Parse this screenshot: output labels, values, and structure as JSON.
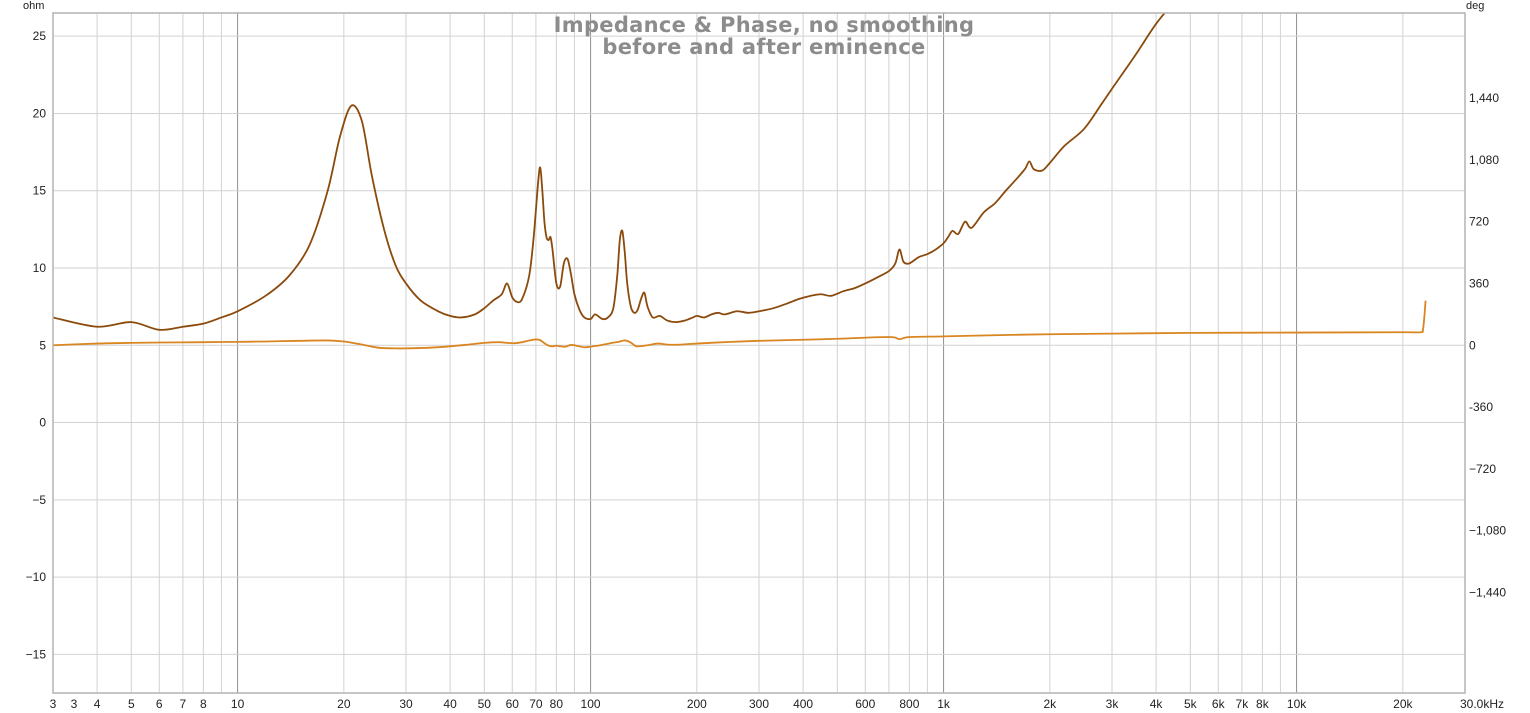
{
  "chart_data": {
    "type": "line",
    "title": "Impedance & Phase, no smoothing",
    "subtitle": "before and after eminence",
    "xlabel": "",
    "ylabel": "",
    "x_unit": "kHz",
    "x_scale": "log",
    "xlim": [
      3,
      30000
    ],
    "x_tick_values": [
      3,
      4,
      5,
      6,
      7,
      8,
      10,
      20,
      30,
      40,
      50,
      60,
      70,
      80,
      100,
      200,
      300,
      400,
      600,
      800,
      1000,
      2000,
      3000,
      4000,
      5000,
      6000,
      7000,
      8000,
      10000,
      20000,
      30000
    ],
    "x_tick_labels": [
      "3",
      "4",
      "5",
      "6",
      "7",
      "8",
      "10",
      "20",
      "30",
      "40",
      "50",
      "60",
      "70",
      "80",
      "100",
      "200",
      "300",
      "400",
      "600",
      "800",
      "1k",
      "2k",
      "3k",
      "4k",
      "5k",
      "6k",
      "7k",
      "8k",
      "10k",
      "20k",
      "30.0kHz"
    ],
    "x_extra_label": "3",
    "y_left": {
      "unit": "ohm",
      "ylim": [
        -17.5,
        26.5
      ],
      "tick_values": [
        25,
        20,
        15,
        10,
        5,
        0,
        -5,
        -10,
        -15
      ],
      "tick_labels": [
        "25",
        "20",
        "15",
        "10",
        "5",
        "0",
        "−5",
        "−10",
        "−15"
      ]
    },
    "y_right": {
      "unit": "deg",
      "ylim": [
        -2025,
        1935
      ],
      "tick_values": [
        1440,
        1080,
        720,
        360,
        0,
        -360,
        -720,
        -1080,
        -1440
      ],
      "tick_labels": [
        "1,440",
        "1,080",
        "720",
        "360",
        "0",
        "-360",
        "−720",
        "−1,080",
        "−1,440"
      ]
    },
    "grid": true,
    "legend": "none",
    "series": [
      {
        "axis": "left",
        "color": "#8b4a0c",
        "x": [
          3,
          4,
          5,
          6,
          7,
          8,
          9,
          10,
          12,
          14,
          16,
          18,
          19.5,
          21,
          22.5,
          24,
          26,
          28,
          30,
          33,
          37,
          40,
          43,
          47,
          50,
          53,
          56,
          58,
          60,
          62,
          64,
          67,
          69,
          71,
          72,
          73,
          74,
          75,
          76,
          77,
          78,
          80,
          82,
          84,
          86,
          88,
          90,
          93,
          96,
          100,
          103,
          108,
          112,
          116,
          119,
          121,
          123,
          125,
          127,
          130,
          133,
          136,
          139,
          142,
          145,
          150,
          157,
          165,
          175,
          185,
          195,
          200,
          210,
          220,
          230,
          240,
          260,
          280,
          300,
          330,
          360,
          390,
          420,
          450,
          480,
          520,
          560,
          600,
          650,
          700,
          730,
          750,
          770,
          800,
          850,
          900,
          950,
          1000,
          1030,
          1060,
          1100,
          1150,
          1200,
          1300,
          1400,
          1500,
          1600,
          1700,
          1750,
          1800,
          1900,
          2000,
          2200,
          2500,
          2800,
          3000,
          3500,
          4000,
          4600
        ],
        "values": [
          6.8,
          6.2,
          6.5,
          6.0,
          6.2,
          6.4,
          6.8,
          7.2,
          8.2,
          9.5,
          11.5,
          15.0,
          18.5,
          20.5,
          19.5,
          16.0,
          12.5,
          10.2,
          9.0,
          7.9,
          7.2,
          6.9,
          6.8,
          7.0,
          7.4,
          7.9,
          8.3,
          9.0,
          8.1,
          7.8,
          8.0,
          9.5,
          12.0,
          15.5,
          16.5,
          15.0,
          13.0,
          12.0,
          11.8,
          12.0,
          11.2,
          9.0,
          8.8,
          10.3,
          10.6,
          9.6,
          8.3,
          7.3,
          6.8,
          6.7,
          7.0,
          6.7,
          6.8,
          7.4,
          9.5,
          11.8,
          12.4,
          11.0,
          9.0,
          7.5,
          7.1,
          7.3,
          8.0,
          8.4,
          7.5,
          6.8,
          6.9,
          6.6,
          6.5,
          6.6,
          6.8,
          6.9,
          6.8,
          7.0,
          7.1,
          7.0,
          7.2,
          7.1,
          7.2,
          7.4,
          7.7,
          8.0,
          8.2,
          8.3,
          8.2,
          8.5,
          8.7,
          9.0,
          9.4,
          9.8,
          10.3,
          11.2,
          10.4,
          10.3,
          10.7,
          10.9,
          11.2,
          11.6,
          12.0,
          12.4,
          12.2,
          13.0,
          12.6,
          13.6,
          14.2,
          15.0,
          15.7,
          16.4,
          16.9,
          16.4,
          16.3,
          16.8,
          17.9,
          19.0,
          20.6,
          21.6,
          23.8,
          25.8,
          27.5
        ]
      },
      {
        "axis": "right",
        "color": "#d98520",
        "x": [
          3,
          4,
          5,
          6,
          7,
          8,
          10,
          12,
          15,
          18,
          20,
          22,
          25,
          28,
          30,
          35,
          40,
          45,
          50,
          55,
          58,
          61,
          64,
          67,
          70,
          72,
          74,
          76,
          78,
          80,
          82,
          85,
          88,
          92,
          96,
          100,
          105,
          110,
          115,
          120,
          125,
          130,
          135,
          145,
          155,
          165,
          180,
          200,
          250,
          300,
          400,
          500,
          700,
          750,
          800,
          1000,
          1500,
          2000,
          3000,
          5000,
          10000,
          20000,
          22500,
          22800,
          23000,
          23200
        ],
        "values": [
          0,
          10,
          14,
          16,
          17,
          18,
          20,
          22,
          26,
          28,
          22,
          8,
          -14,
          -18,
          -18,
          -14,
          -6,
          4,
          14,
          18,
          14,
          12,
          18,
          28,
          34,
          30,
          12,
          -2,
          -6,
          -2,
          -6,
          -8,
          2,
          -4,
          -12,
          -8,
          -2,
          6,
          14,
          20,
          28,
          16,
          -6,
          0,
          10,
          4,
          4,
          10,
          20,
          26,
          32,
          38,
          48,
          36,
          48,
          52,
          60,
          64,
          68,
          72,
          74,
          76,
          76,
          90,
          160,
          260
        ]
      }
    ]
  }
}
